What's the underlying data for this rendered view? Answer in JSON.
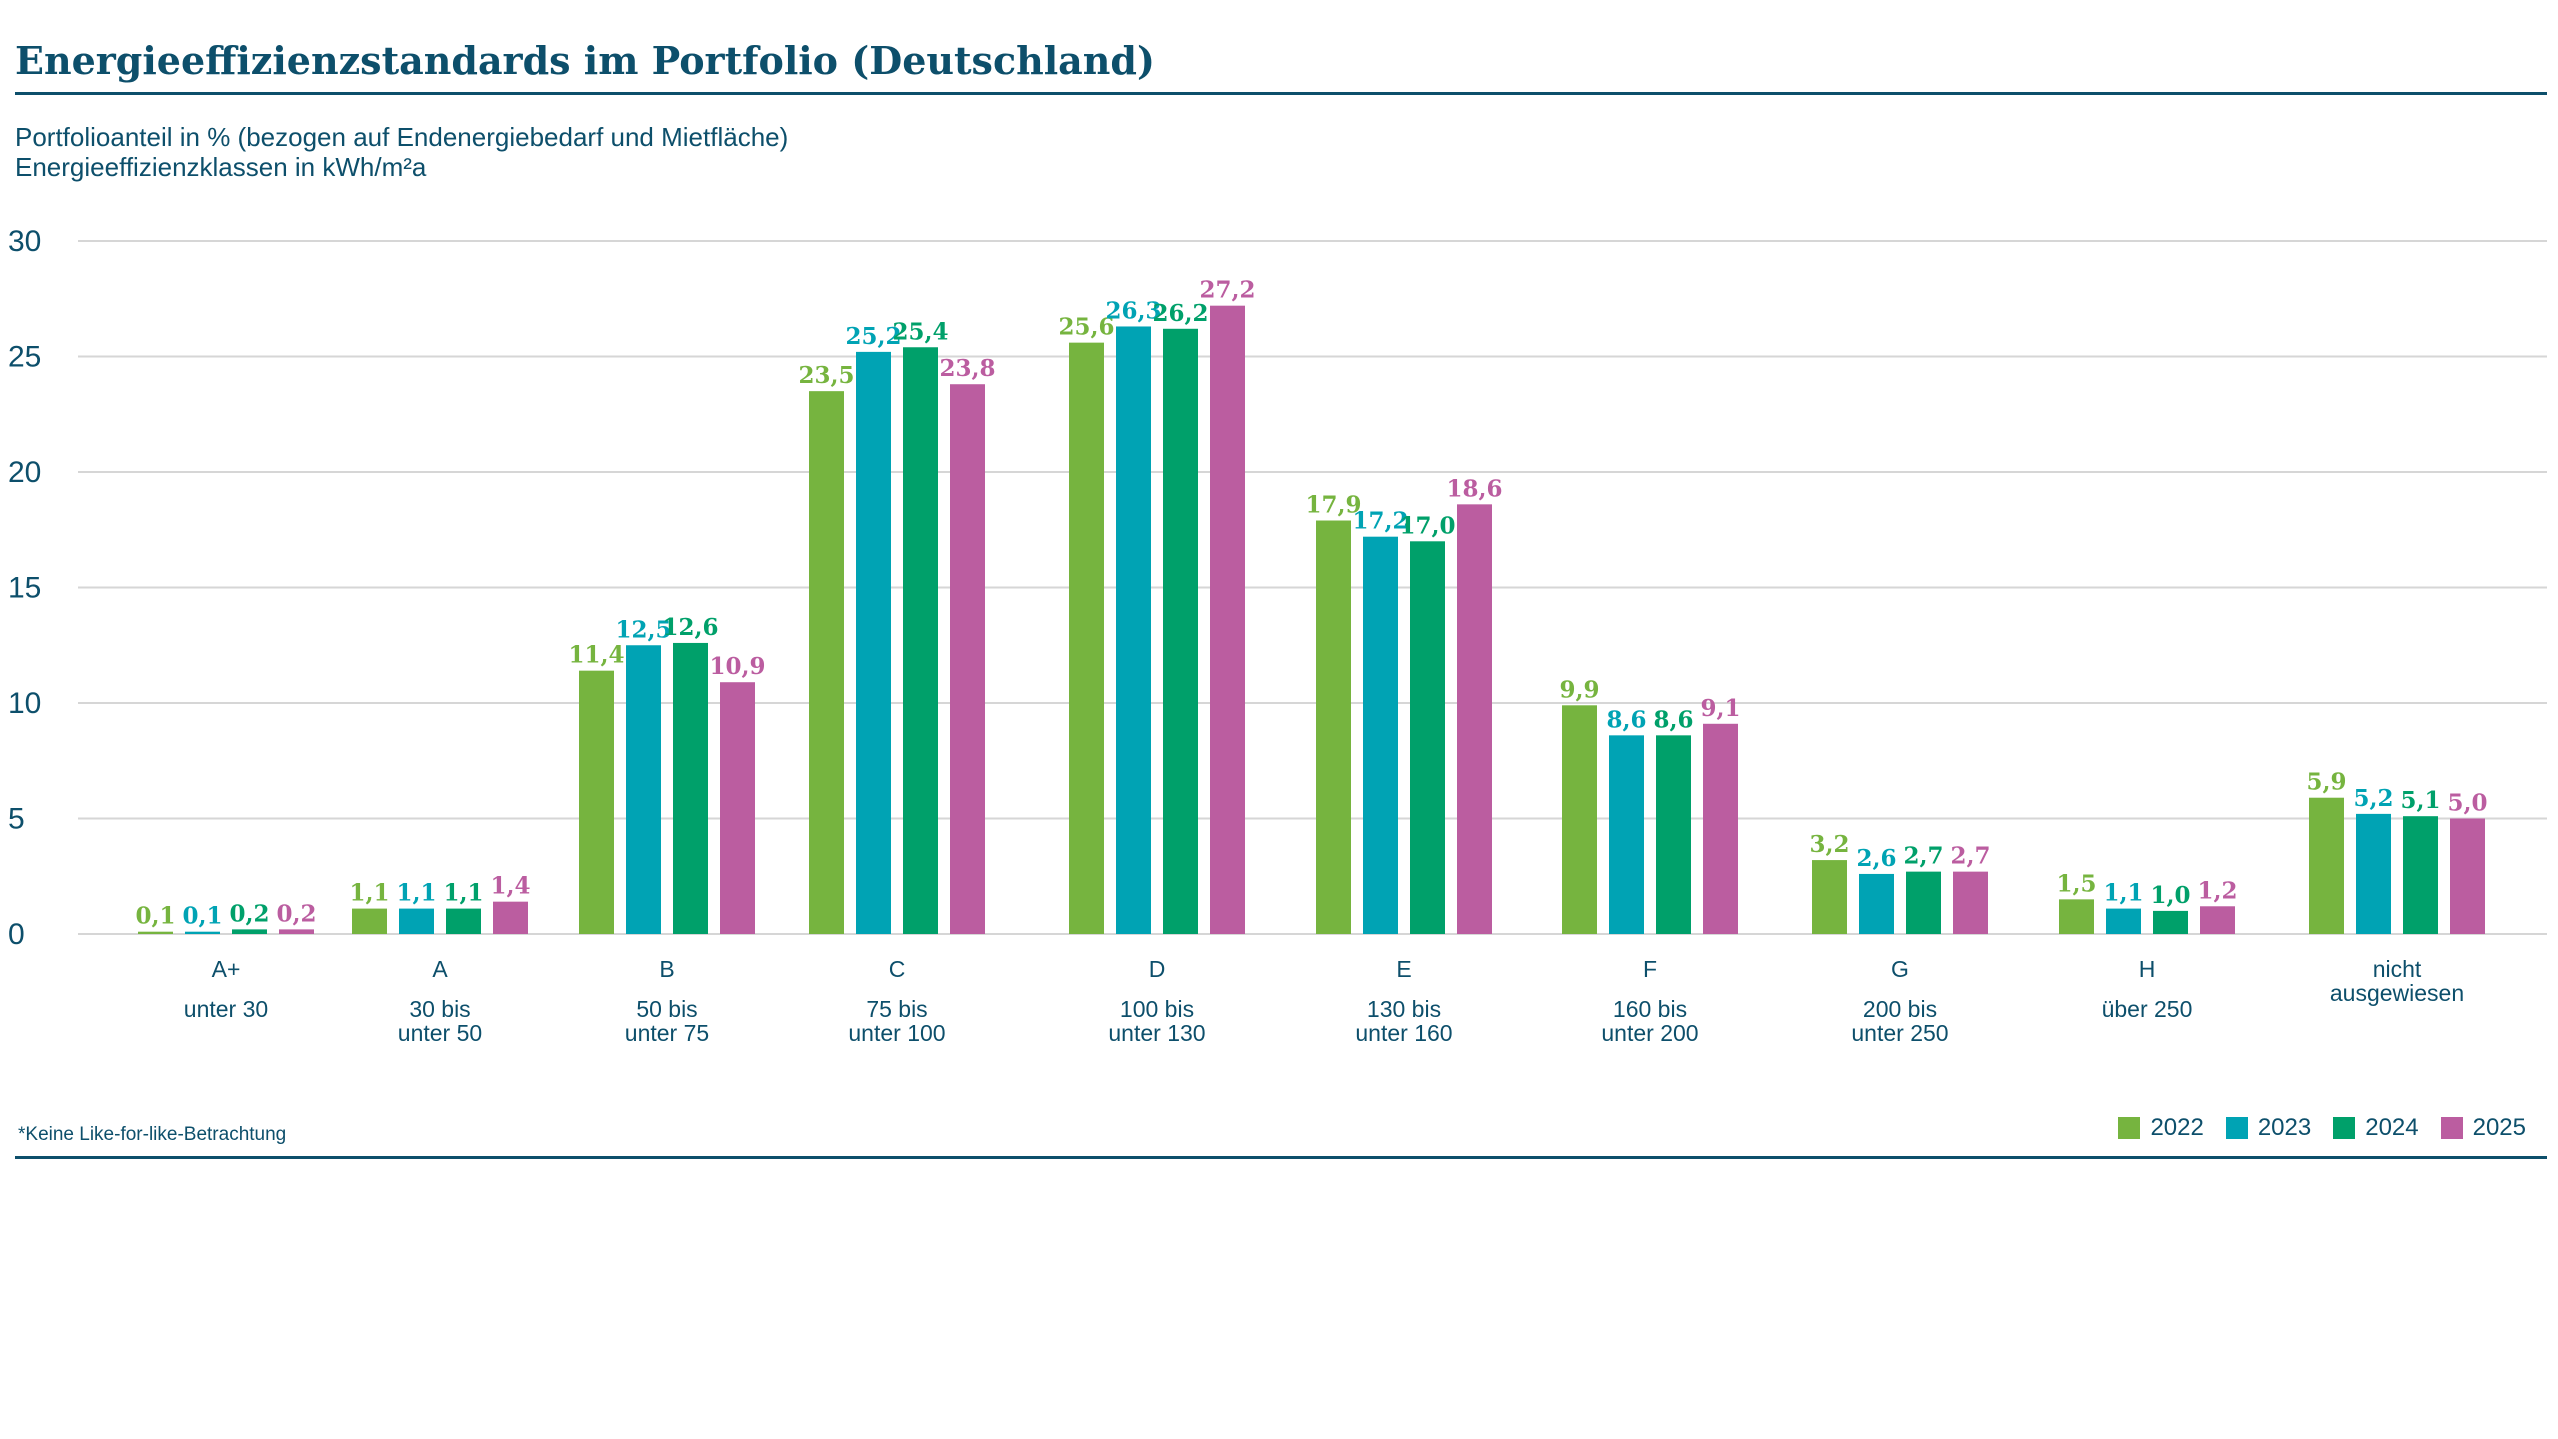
{
  "title": "Energieeffizienzstandards im Portfolio (Deutschland)",
  "subtitle_line1": "Portfolioanteil in % (bezogen auf Endenergiebedarf und Mietfläche)",
  "subtitle_line2": "Energieeffizienzklassen in kWh/m²a",
  "footnote": "*Keine Like-for-like-Betrachtung",
  "colors": {
    "axis_text": "#0d4f6b",
    "grid": "#d6d6d6"
  },
  "chart_data": {
    "type": "bar",
    "categories": [
      "A+",
      "A",
      "B",
      "C",
      "D",
      "E",
      "F",
      "G",
      "H",
      "nicht ausgewiesen"
    ],
    "category_ranges": [
      [
        "unter 30"
      ],
      [
        "30 bis",
        "unter 50"
      ],
      [
        "50 bis",
        "unter 75"
      ],
      [
        "75 bis",
        "unter 100"
      ],
      [
        "100 bis",
        "unter 130"
      ],
      [
        "130 bis",
        "unter 160"
      ],
      [
        "160 bis",
        "unter 200"
      ],
      [
        "200 bis",
        "unter 250"
      ],
      [
        "über 250"
      ],
      []
    ],
    "series": [
      {
        "name": "2022",
        "color": "#76b43f",
        "values": [
          0.1,
          1.1,
          11.4,
          23.5,
          25.6,
          17.9,
          9.9,
          3.2,
          1.5,
          5.9
        ],
        "labels": [
          "0,1",
          "1,1",
          "11,4",
          "23,5",
          "25,6",
          "17,9",
          "9,9",
          "3,2",
          "1,5",
          "5,9"
        ]
      },
      {
        "name": "2023",
        "color": "#00a3b4",
        "values": [
          0.1,
          1.1,
          12.5,
          25.2,
          26.3,
          17.2,
          8.6,
          2.6,
          1.1,
          5.2
        ],
        "labels": [
          "0,1",
          "1,1",
          "12,5",
          "25,2",
          "26,3",
          "17,2",
          "8,6",
          "2,6",
          "1,1",
          "5,2"
        ]
      },
      {
        "name": "2024",
        "color": "#00a06a",
        "values": [
          0.2,
          1.1,
          12.6,
          25.4,
          26.2,
          17.0,
          8.6,
          2.7,
          1.0,
          5.1
        ],
        "labels": [
          "0,2",
          "1,1",
          "12,6",
          "25,4",
          "26,2",
          "17,0",
          "8,6",
          "2,7",
          "1,0",
          "5,1"
        ]
      },
      {
        "name": "2025",
        "color": "#bb5da0",
        "values": [
          0.2,
          1.4,
          10.9,
          23.8,
          27.2,
          18.6,
          9.1,
          2.7,
          1.2,
          5.0
        ],
        "labels": [
          "0,2",
          "1,4",
          "10,9",
          "23,8",
          "27,2",
          "18,6",
          "9,1",
          "2,7",
          "1,2",
          "5,0"
        ]
      }
    ],
    "ylim": [
      0,
      30
    ],
    "yticks": [
      0,
      5,
      10,
      15,
      20,
      25,
      30
    ],
    "grid": true,
    "legend_position": "bottom-right"
  }
}
